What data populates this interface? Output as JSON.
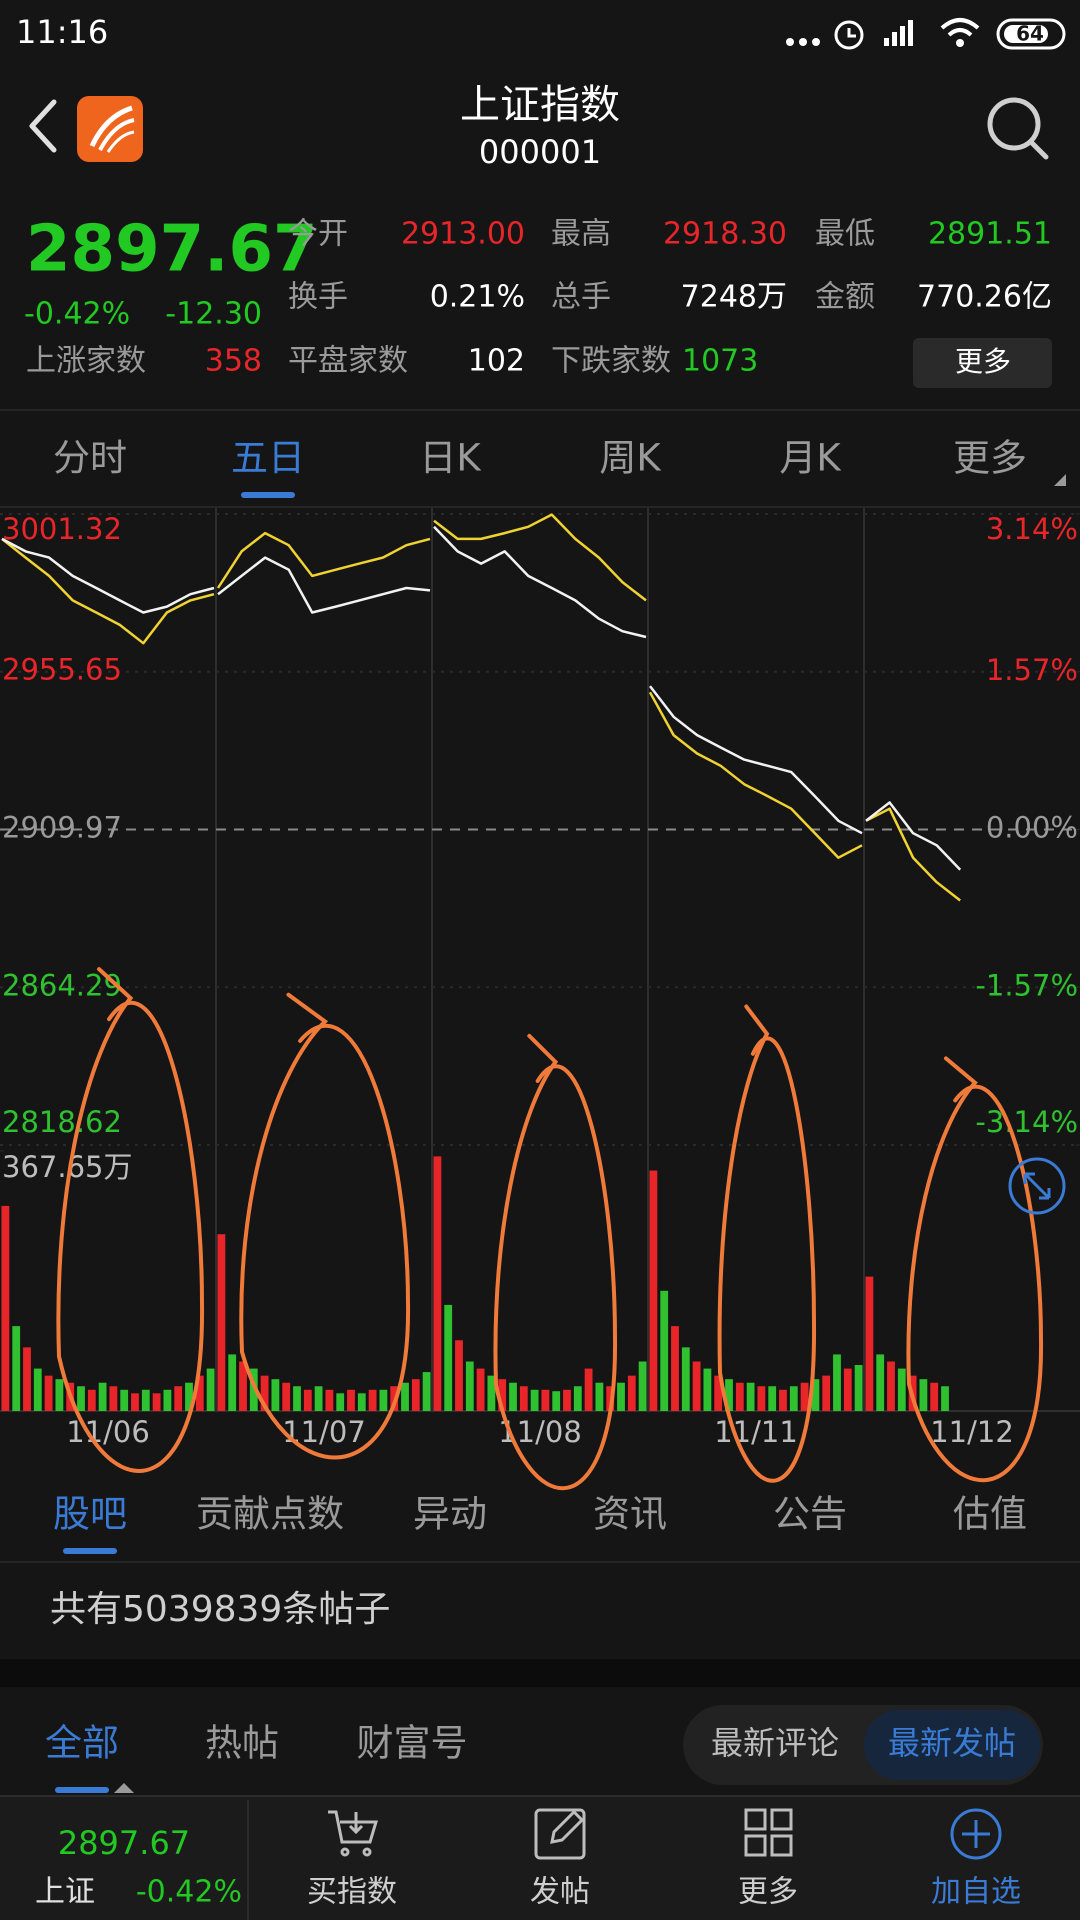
{
  "status_bar": {
    "time": "11:16",
    "battery": "64"
  },
  "header": {
    "title": "上证指数",
    "code": "000001"
  },
  "quote": {
    "price": "2897.67",
    "change_pct": "-0.42%",
    "change": "-12.30",
    "rise_label": "上涨家数",
    "rise_count": "358",
    "color": "#22c922",
    "rise_color": "#e8262a"
  },
  "stats": [
    {
      "label": "今开",
      "value": "2913.00",
      "color": "#e8262a"
    },
    {
      "label": "最高",
      "value": "2918.30",
      "color": "#e8262a"
    },
    {
      "label": "最低",
      "value": "2891.51",
      "color": "#22c922"
    },
    {
      "label": "换手",
      "value": "0.21%",
      "color": "#ffffff"
    },
    {
      "label": "总手",
      "value": "7248万",
      "color": "#ffffff"
    },
    {
      "label": "金额",
      "value": "770.26亿",
      "color": "#ffffff"
    },
    {
      "label": "平盘家数",
      "value": "102",
      "color": "#ffffff"
    },
    {
      "label": "下跌家数",
      "value": "1073",
      "color": "#22c922"
    }
  ],
  "more_button": "更多",
  "chart_tabs": {
    "items": [
      "分时",
      "五日",
      "日K",
      "周K",
      "月K",
      "更多"
    ],
    "selected": 1
  },
  "chart_data": {
    "type": "line",
    "ylim": [
      2818.62,
      3001.32
    ],
    "yticks": [
      3001.32,
      2955.65,
      2909.97,
      2864.29,
      2818.62
    ],
    "y2lim": [
      -3.14,
      3.14
    ],
    "y2ticks": [
      {
        "value": 3.14,
        "label": "3.14%"
      },
      {
        "value": 1.57,
        "label": "1.57%"
      },
      {
        "value": 0,
        "label": "0.00%"
      },
      {
        "value": -1.57,
        "label": "-1.57%"
      },
      {
        "value": -3.14,
        "label": "-3.14%"
      }
    ],
    "volume_max": {
      "value": 367.65,
      "label": "367.65万"
    },
    "colors": {
      "price": "#f2f2f2",
      "average": "#f0d230",
      "up": "#e8262a",
      "down": "#2fc12f",
      "flat": "#9a9a9a"
    },
    "days": [
      {
        "date": "11/06",
        "price": [
          2994.1,
          2990.5,
          2988.7,
          2983.4,
          2979.9,
          2976.3,
          2972.8,
          2974.5,
          2978.1,
          2979.9
        ],
        "average": [
          2994.1,
          2988.7,
          2983.4,
          2976.3,
          2972.8,
          2969.2,
          2963.9,
          2972.8,
          2976.3,
          2978.1
        ],
        "volume": [
          290,
          120,
          90,
          60,
          50,
          45,
          40,
          35,
          30,
          40,
          35,
          30,
          25,
          30,
          25,
          30,
          35,
          40,
          50,
          60
        ]
      },
      {
        "date": "11/07",
        "price": [
          2978.1,
          2983.4,
          2988.7,
          2985.2,
          2972.8,
          2974.5,
          2976.3,
          2978.1,
          2979.9,
          2979.2
        ],
        "average": [
          2979.9,
          2990.5,
          2995.8,
          2992.3,
          2983.4,
          2985.2,
          2986.96,
          2988.7,
          2992.3,
          2994.1
        ],
        "volume": [
          250,
          80,
          70,
          60,
          50,
          45,
          40,
          35,
          30,
          35,
          30,
          25,
          30,
          25,
          30,
          30,
          35,
          40,
          45,
          55
        ]
      },
      {
        "date": "11/08",
        "price": [
          2997.6,
          2990.5,
          2986.96,
          2990.5,
          2983.4,
          2979.9,
          2976.3,
          2971.0,
          2967.4,
          2965.7
        ],
        "average": [
          2999.38,
          2994.1,
          2994.1,
          2995.8,
          2997.6,
          3001.15,
          2994.1,
          2988.7,
          2981.6,
          2976.3
        ],
        "volume": [
          360,
          150,
          100,
          70,
          60,
          50,
          45,
          40,
          35,
          30,
          30,
          28,
          30,
          35,
          60,
          40,
          35,
          40,
          50,
          70
        ]
      },
      {
        "date": "11/11",
        "price": [
          2951.5,
          2942.6,
          2937.3,
          2933.7,
          2930.2,
          2928.4,
          2926.6,
          2919.6,
          2912.5,
          2908.9
        ],
        "average": [
          2949.7,
          2937.3,
          2931.97,
          2928.4,
          2923.1,
          2919.6,
          2916.0,
          2908.9,
          2901.8,
          2905.4
        ],
        "volume": [
          340,
          170,
          120,
          90,
          70,
          60,
          50,
          45,
          40,
          40,
          35,
          35,
          30,
          35,
          40,
          45,
          50,
          80,
          60,
          65
        ]
      },
      {
        "date": "11/12",
        "price": [
          2912.5,
          2917.8,
          2908.9,
          2905.4,
          2898.3
        ],
        "average": [
          2912.5,
          2916.0,
          2901.8,
          2894.7,
          2889.4
        ],
        "volume": [
          190,
          80,
          70,
          60,
          50,
          45,
          40,
          35
        ]
      }
    ]
  },
  "info_tabs": {
    "items": [
      "股吧",
      "贡献点数",
      "异动",
      "资讯",
      "公告",
      "估值"
    ],
    "selected": 0
  },
  "post_count": "共有5039839条帖子",
  "post_tabs": {
    "items": [
      "全部",
      "热帖",
      "财富号"
    ],
    "selected": 0
  },
  "sort_toggle": {
    "items": [
      "最新评论",
      "最新发帖"
    ],
    "selected": 1
  },
  "bottom_bar": {
    "price": "2897.67",
    "name": "上证",
    "change_pct": "-0.42%",
    "actions": [
      "买指数",
      "发帖",
      "更多",
      "加自选"
    ]
  }
}
